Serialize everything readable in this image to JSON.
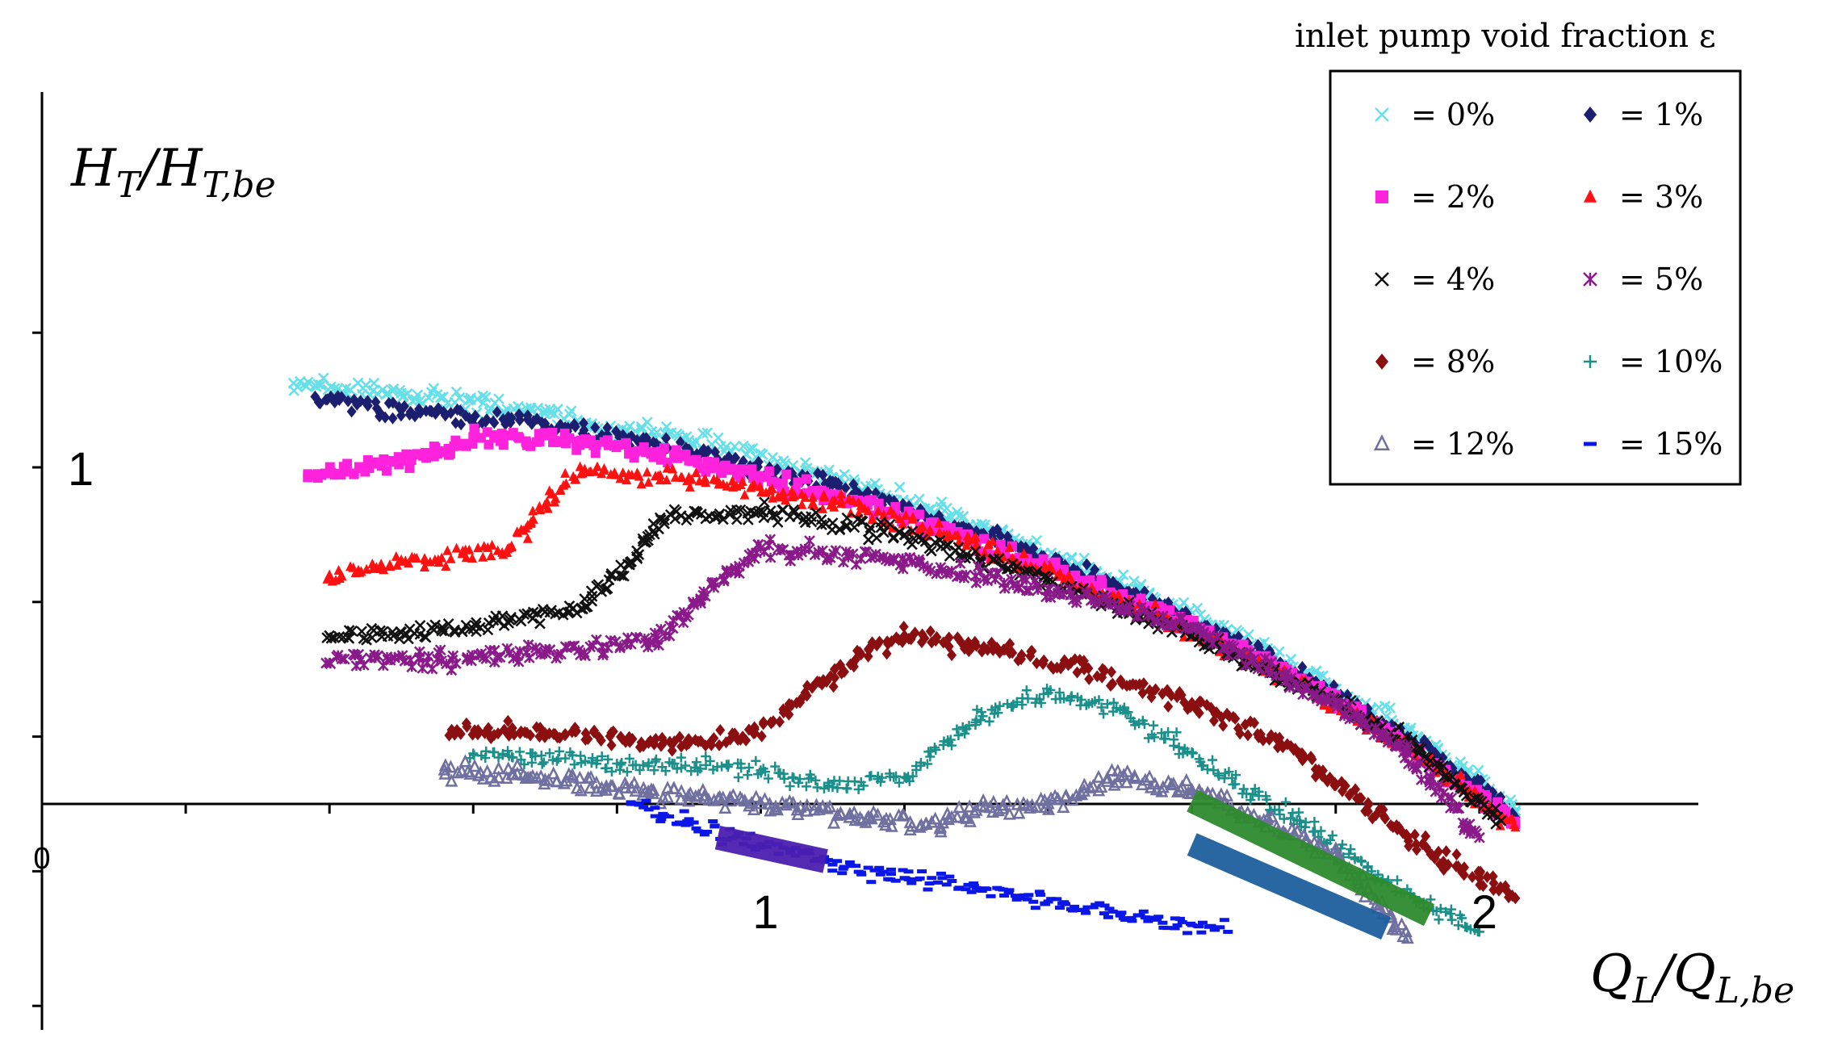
{
  "chart_data": {
    "type": "scatter",
    "title": "",
    "xlabel": "Q_L/Q_L,be",
    "ylabel": "H_T/H_T,be",
    "xlabel_display": {
      "base": "Q",
      "base_sub": "L",
      "sep": "/",
      "num": "Q",
      "num_sub": "L,be"
    },
    "ylabel_display": {
      "base": "H",
      "base_sub": "T",
      "sep": "/",
      "num": "H",
      "num_sub": "T,be"
    },
    "xlim": [
      0,
      2.3
    ],
    "ylim": [
      -0.7,
      1.45
    ],
    "x_ticks": [
      {
        "value": 0,
        "label": "0"
      },
      {
        "value": 1,
        "label": "1"
      },
      {
        "value": 2,
        "label": "2"
      }
    ],
    "y_ticks": [
      {
        "value": 1,
        "label": "1"
      }
    ],
    "x_tick_marks": [
      0.2,
      0.4,
      0.6,
      0.8,
      1.0,
      1.2,
      1.4,
      1.6,
      1.8,
      2.0
    ],
    "y_tick_marks": [
      -0.6,
      -0.2,
      0.2,
      0.6,
      1.0,
      1.4
    ],
    "grid": false,
    "legend_title": "inlet pump void fraction ε",
    "legend_position": "top-right",
    "series": [
      {
        "name": "= 0%",
        "marker": "x",
        "color": "#66e0e8",
        "x": [
          0.35,
          0.5,
          0.7,
          0.9,
          1.1,
          1.3,
          1.5,
          1.7,
          1.9,
          2.0,
          2.05
        ],
        "y": [
          1.25,
          1.22,
          1.16,
          1.08,
          0.97,
          0.83,
          0.66,
          0.46,
          0.22,
          0.07,
          -0.02
        ]
      },
      {
        "name": "= 1%",
        "marker": "diamond",
        "color": "#1c1f70",
        "x": [
          0.38,
          0.5,
          0.7,
          0.9,
          1.1,
          1.3,
          1.5,
          1.7,
          1.9,
          2.0,
          2.05
        ],
        "y": [
          1.21,
          1.17,
          1.13,
          1.05,
          0.95,
          0.81,
          0.64,
          0.44,
          0.2,
          0.05,
          -0.04
        ]
      },
      {
        "name": "= 2%",
        "marker": "square",
        "color": "#ff22dd",
        "x": [
          0.37,
          0.45,
          0.55,
          0.6,
          0.75,
          0.9,
          1.1,
          1.3,
          1.5,
          1.7,
          1.9,
          2.05
        ],
        "y": [
          0.98,
          1.0,
          1.04,
          1.09,
          1.08,
          1.02,
          0.92,
          0.78,
          0.62,
          0.42,
          0.18,
          -0.06
        ]
      },
      {
        "name": "= 3%",
        "marker": "triangle",
        "color": "#ff1111",
        "x": [
          0.4,
          0.5,
          0.65,
          0.71,
          0.75,
          0.9,
          1.1,
          1.3,
          1.5,
          1.7,
          1.9,
          2.05
        ],
        "y": [
          0.68,
          0.72,
          0.76,
          0.92,
          0.98,
          0.97,
          0.9,
          0.77,
          0.61,
          0.41,
          0.17,
          -0.07
        ]
      },
      {
        "name": "= 4%",
        "marker": "x",
        "color": "#111111",
        "x": [
          0.4,
          0.5,
          0.6,
          0.75,
          0.82,
          0.86,
          1.0,
          1.2,
          1.4,
          1.6,
          1.8,
          1.9,
          2.03
        ],
        "y": [
          0.5,
          0.51,
          0.52,
          0.58,
          0.72,
          0.85,
          0.87,
          0.8,
          0.66,
          0.5,
          0.3,
          0.18,
          -0.05
        ]
      },
      {
        "name": "= 5%",
        "marker": "asterisk",
        "color": "#8a1a8a",
        "x": [
          0.4,
          0.55,
          0.7,
          0.85,
          0.92,
          1.0,
          1.2,
          1.4,
          1.6,
          1.8,
          1.9,
          2.0
        ],
        "y": [
          0.42,
          0.43,
          0.45,
          0.48,
          0.62,
          0.76,
          0.72,
          0.64,
          0.52,
          0.3,
          0.15,
          -0.1
        ]
      },
      {
        "name": "= 8%",
        "marker": "diamond",
        "color": "#8b0f10",
        "x": [
          0.57,
          0.7,
          0.9,
          0.99,
          1.05,
          1.15,
          1.2,
          1.3,
          1.45,
          1.6,
          1.75,
          1.9,
          2.0,
          2.05
        ],
        "y": [
          0.22,
          0.21,
          0.18,
          0.21,
          0.3,
          0.46,
          0.5,
          0.47,
          0.4,
          0.3,
          0.15,
          -0.1,
          -0.22,
          -0.28
        ]
      },
      {
        "name": "= 10%",
        "marker": "plus",
        "color": "#1b8f8a",
        "x": [
          0.6,
          0.8,
          1.0,
          1.1,
          1.2,
          1.3,
          1.4,
          1.5,
          1.6,
          1.75,
          1.85,
          2.0
        ],
        "y": [
          0.15,
          0.12,
          0.1,
          0.05,
          0.08,
          0.25,
          0.33,
          0.28,
          0.15,
          -0.05,
          -0.2,
          -0.38
        ]
      },
      {
        "name": "= 12%",
        "marker": "triangle-open",
        "color": "#7070a0",
        "x": [
          0.56,
          0.7,
          0.85,
          1.0,
          1.15,
          1.25,
          1.3,
          1.4,
          1.5,
          1.6,
          1.7,
          1.8,
          1.9
        ],
        "y": [
          0.1,
          0.07,
          0.03,
          0.0,
          -0.04,
          -0.07,
          -0.02,
          0.0,
          0.08,
          0.04,
          -0.05,
          -0.15,
          -0.4
        ]
      },
      {
        "name": "= 15%",
        "marker": "dash",
        "color": "#0b16e8",
        "x": [
          0.82,
          0.9,
          1.0,
          1.1,
          1.2,
          1.3,
          1.4,
          1.5,
          1.6,
          1.65
        ],
        "y": [
          0.0,
          -0.06,
          -0.12,
          -0.18,
          -0.22,
          -0.25,
          -0.29,
          -0.33,
          -0.36,
          -0.38
        ]
      }
    ],
    "highlight_bars": [
      {
        "color": "#4b1fb0",
        "x": [
          0.94,
          1.09
        ],
        "y": [
          -0.1,
          -0.17
        ]
      },
      {
        "color": "#2e8b2e",
        "x": [
          1.6,
          1.93
        ],
        "y": [
          0.01,
          -0.33
        ]
      },
      {
        "color": "#1e5f9e",
        "x": [
          1.6,
          1.87
        ],
        "y": [
          -0.12,
          -0.37
        ]
      }
    ]
  }
}
